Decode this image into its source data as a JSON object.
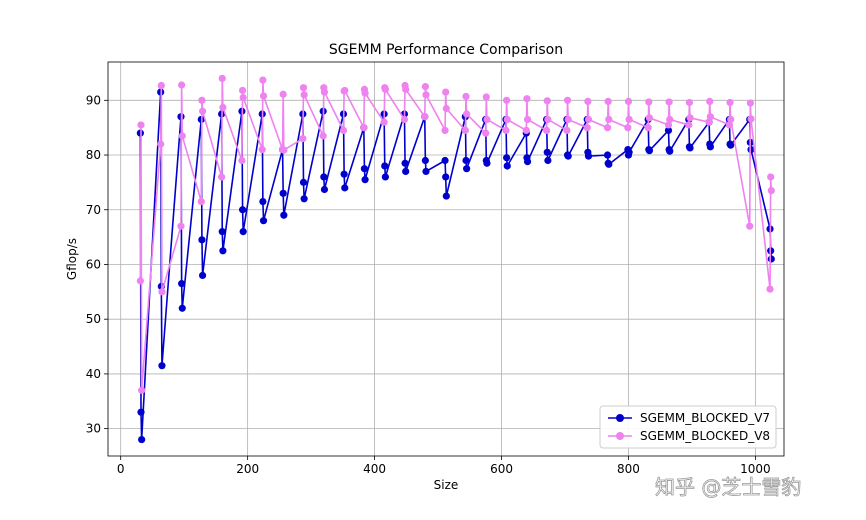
{
  "chart_data": {
    "type": "line",
    "title": "SGEMM Performance Comparison",
    "xlabel": "Size",
    "ylabel": "Gflop/s",
    "xlim": [
      -20,
      1045
    ],
    "ylim": [
      25,
      97
    ],
    "xticks": [
      0,
      200,
      400,
      600,
      800,
      1000
    ],
    "yticks": [
      30,
      40,
      50,
      60,
      70,
      80,
      90
    ],
    "grid": true,
    "legend_position": "bottom-right",
    "series": [
      {
        "name": "SGEMM_BLOCKED_V7",
        "color": "#0000cd",
        "x": [
          31,
          32,
          33,
          63,
          64,
          65,
          95,
          96,
          97,
          127,
          128,
          129,
          159,
          160,
          161,
          191,
          192,
          193,
          223,
          224,
          225,
          255,
          256,
          257,
          287,
          288,
          289,
          319,
          320,
          321,
          351,
          352,
          353,
          383,
          384,
          385,
          415,
          416,
          417,
          447,
          448,
          449,
          479,
          480,
          481,
          511,
          512,
          513,
          543,
          544,
          545,
          575,
          576,
          577,
          607,
          608,
          609,
          639,
          640,
          641,
          671,
          672,
          673,
          703,
          704,
          705,
          735,
          736,
          737,
          767,
          768,
          769,
          799,
          800,
          801,
          831,
          832,
          833,
          863,
          864,
          865,
          895,
          896,
          897,
          927,
          928,
          929,
          959,
          960,
          961,
          991,
          992,
          993,
          1023,
          1024,
          1025
        ],
        "y": [
          84,
          33,
          28,
          91.5,
          56,
          41.5,
          87,
          56.5,
          52,
          86.5,
          64.5,
          58,
          87.5,
          66,
          62.5,
          88,
          70,
          66,
          87.5,
          71.5,
          68,
          81,
          73,
          69,
          87.5,
          75,
          72,
          88,
          76,
          73.7,
          87.5,
          76.5,
          74,
          85,
          77.5,
          75.5,
          87.5,
          78,
          76,
          87.5,
          78.5,
          77,
          87,
          79,
          77,
          79,
          76,
          72.5,
          87,
          79,
          77.5,
          86.5,
          79,
          78.5,
          86.5,
          79.5,
          78,
          84,
          79.5,
          78.8,
          86.5,
          80.5,
          79,
          86.5,
          80,
          79.8,
          86.5,
          80.5,
          79.8,
          80,
          78.5,
          78.3,
          81,
          80,
          80.5,
          86.5,
          81,
          80.8,
          84.5,
          81,
          80.7,
          86.5,
          81.5,
          81.3,
          86,
          82,
          81.5,
          86.5,
          82,
          81.8,
          86.5,
          82.3,
          81,
          66.5,
          62.5,
          61
        ]
      },
      {
        "name": "SGEMM_BLOCKED_V8",
        "color": "#ee82ee",
        "x": [
          31,
          32,
          33,
          63,
          64,
          65,
          95,
          96,
          97,
          127,
          128,
          129,
          159,
          160,
          161,
          191,
          192,
          193,
          223,
          224,
          225,
          255,
          256,
          257,
          287,
          288,
          289,
          319,
          320,
          321,
          351,
          352,
          353,
          383,
          384,
          385,
          415,
          416,
          417,
          447,
          448,
          449,
          479,
          480,
          481,
          511,
          512,
          513,
          543,
          544,
          545,
          575,
          576,
          577,
          607,
          608,
          609,
          639,
          640,
          641,
          671,
          672,
          673,
          703,
          704,
          705,
          735,
          736,
          737,
          767,
          768,
          769,
          799,
          800,
          801,
          831,
          832,
          833,
          863,
          864,
          865,
          895,
          896,
          897,
          927,
          928,
          929,
          959,
          960,
          961,
          991,
          992,
          993,
          1023,
          1024,
          1025
        ],
        "y": [
          57,
          85.5,
          37,
          82,
          92.7,
          55,
          67,
          92.8,
          83.5,
          71.5,
          90,
          88,
          76,
          94,
          88.7,
          79,
          91.8,
          90.5,
          81,
          93.7,
          90.8,
          81,
          91.1,
          80.9,
          83,
          92.3,
          91,
          83.5,
          92.3,
          91.5,
          84.5,
          91.7,
          91.8,
          85,
          92,
          91.3,
          86,
          92.3,
          92,
          86.5,
          92.7,
          92,
          87,
          92.5,
          91,
          84.5,
          91.5,
          88.5,
          84.5,
          90.7,
          87.5,
          84,
          90.6,
          86.5,
          84.5,
          90,
          86.5,
          84.5,
          90.3,
          86.5,
          84.5,
          89.9,
          86.5,
          84.5,
          90,
          86.5,
          85,
          89.8,
          86.5,
          85,
          89.8,
          86.5,
          85,
          89.8,
          86.5,
          85,
          89.7,
          86.8,
          85.5,
          89.7,
          86.5,
          85.5,
          89.6,
          86.8,
          86,
          89.8,
          87,
          85.5,
          89.6,
          86.5,
          67,
          89.5,
          86.6,
          55.5,
          76,
          73.5
        ]
      }
    ]
  },
  "watermark": "知乎 @芝士雪豹"
}
